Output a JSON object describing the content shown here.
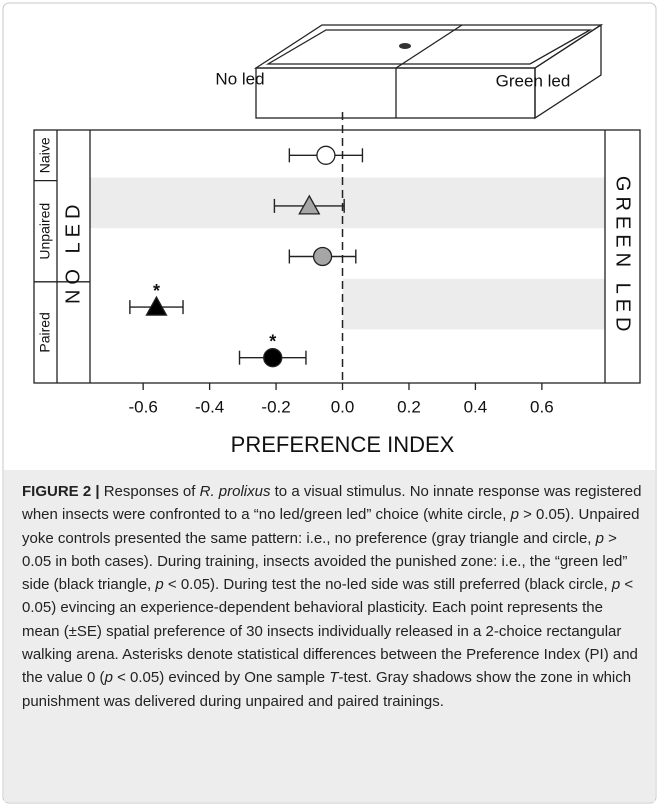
{
  "chart_data": {
    "type": "dotplot",
    "arena_labels": [
      "No led",
      "Green led"
    ],
    "left_label": "NO LED",
    "right_label": "GREEN LED",
    "xlabel": "PREFERENCE INDEX",
    "xlim": [
      -0.76,
      0.79
    ],
    "xticks": [
      -0.6,
      -0.4,
      -0.2,
      {
        "value": 0,
        "label": "0.0"
      },
      0.2,
      0.4,
      0.6
    ],
    "refline": 0,
    "groups": [
      "Naive",
      "Unpaired",
      "Paired"
    ],
    "points": [
      {
        "group": "Naive",
        "marker": "circle",
        "color": "#ffffff",
        "value": -0.05,
        "error": 0.11
      },
      {
        "group": "Unpaired",
        "marker": "triangle",
        "color": "#a6a6a6",
        "value": -0.1,
        "error": 0.105
      },
      {
        "group": "Unpaired",
        "marker": "circle",
        "color": "#a6a6a6",
        "value": -0.06,
        "error": 0.1
      },
      {
        "group": "Paired",
        "marker": "triangle",
        "color": "#000000",
        "value": -0.56,
        "error": 0.08,
        "annotation": "*"
      },
      {
        "group": "Paired",
        "marker": "circle",
        "color": "#000000",
        "value": -0.21,
        "error": 0.1,
        "annotation": "*"
      }
    ]
  },
  "caption": {
    "runs": [
      {
        "text": "FIGURE 2 | ",
        "style": "bold"
      },
      {
        "text": "Responses of "
      },
      {
        "text": "R. prolixus",
        "style": "italic"
      },
      {
        "text": " to a visual stimulus. No innate response was registered when insects were confronted to a “no led/green led” choice (white circle, "
      },
      {
        "text": "p",
        "style": "italic"
      },
      {
        "text": " > 0.05). Unpaired yoke controls presented the same pattern: i.e., no preference (gray triangle and circle, "
      },
      {
        "text": "p",
        "style": "italic"
      },
      {
        "text": " > 0.05 in both cases). During training, insects avoided the punished zone: i.e., the “green led” side (black triangle, "
      },
      {
        "text": "p",
        "style": "italic"
      },
      {
        "text": " < 0.05). During test the no-led side was still preferred (black circle, "
      },
      {
        "text": "p",
        "style": "italic"
      },
      {
        "text": " < 0.05) evincing an experience-dependent behavioral plasticity. Each point represents the mean (±SE) spatial preference of 30 insects individually released in a 2-choice rectangular walking arena. Asterisks denote statistical differences between the Preference Index (PI) and the value 0 ("
      },
      {
        "text": "p",
        "style": "italic"
      },
      {
        "text": " < 0.05) evinced by One sample "
      },
      {
        "text": "T",
        "style": "italic"
      },
      {
        "text": "-test. Gray shadows show the zone in which punishment was delivered during unpaired and paired trainings."
      }
    ]
  }
}
